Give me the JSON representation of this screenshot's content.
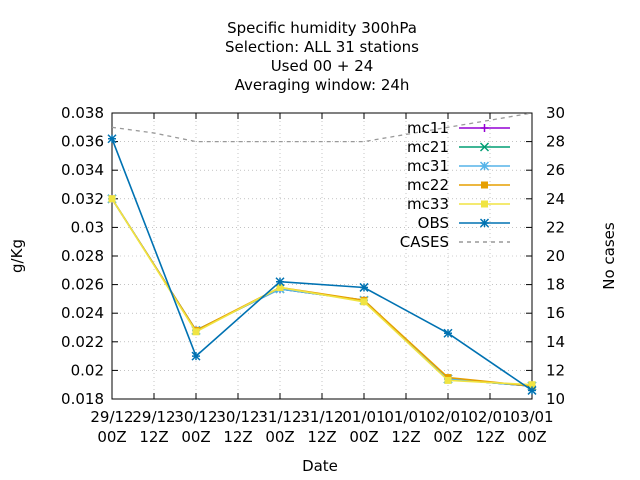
{
  "chart_data": {
    "type": "line",
    "title_lines": [
      "Specific humidity 300hPa",
      "Selection: ALL      31 stations",
      "Used  00 + 24",
      "Averaging window: 24h"
    ],
    "xlabel": "Date",
    "ylabel": "g/Kg",
    "y2label": "No cases",
    "x_ticks": [
      [
        "29/12",
        "00Z"
      ],
      [
        "29/12",
        "12Z"
      ],
      [
        "30/12",
        "00Z"
      ],
      [
        "30/12",
        "12Z"
      ],
      [
        "31/12",
        "00Z"
      ],
      [
        "31/12",
        "12Z"
      ],
      [
        "01/01",
        "00Z"
      ],
      [
        "01/01",
        "12Z"
      ],
      [
        "02/01",
        "00Z"
      ],
      [
        "02/01",
        "12Z"
      ],
      [
        "03/01",
        "00Z"
      ]
    ],
    "xlim": [
      0,
      10
    ],
    "ylim": [
      0.018,
      0.038
    ],
    "y_ticks": [
      "0.018",
      "0.02",
      "0.022",
      "0.024",
      "0.026",
      "0.028",
      "0.03",
      "0.032",
      "0.034",
      "0.036",
      "0.038"
    ],
    "y2lim": [
      10,
      30
    ],
    "y2_ticks": [
      "10",
      "12",
      "14",
      "16",
      "18",
      "20",
      "22",
      "24",
      "26",
      "28",
      "30"
    ],
    "grid": true,
    "legend_position": "top-right",
    "series": [
      {
        "name": "mc11",
        "color": "#9400d3",
        "marker": "plus",
        "dash": "",
        "axis": "y1",
        "x": [
          0,
          2,
          4,
          6,
          8,
          10
        ],
        "values": [
          0.032,
          0.0228,
          0.0257,
          0.0249,
          0.0194,
          0.0189
        ]
      },
      {
        "name": "mc21",
        "color": "#009e73",
        "marker": "cross",
        "dash": "",
        "axis": "y1",
        "x": [
          0,
          2,
          4,
          6,
          8,
          10
        ],
        "values": [
          0.032,
          0.0228,
          0.0257,
          0.0249,
          0.0194,
          0.0189
        ]
      },
      {
        "name": "mc31",
        "color": "#56b4e9",
        "marker": "star",
        "dash": "",
        "axis": "y1",
        "x": [
          0,
          2,
          4,
          6,
          8,
          10
        ],
        "values": [
          0.032,
          0.0228,
          0.0257,
          0.0249,
          0.0194,
          0.0189
        ]
      },
      {
        "name": "mc22",
        "color": "#e69f00",
        "marker": "box",
        "dash": "",
        "axis": "y1",
        "x": [
          0,
          2,
          4,
          6,
          8,
          10
        ],
        "values": [
          0.032,
          0.0228,
          0.0258,
          0.0249,
          0.0195,
          0.0189
        ]
      },
      {
        "name": "mc33",
        "color": "#f0e442",
        "marker": "fbox",
        "dash": "",
        "axis": "y1",
        "x": [
          0,
          2,
          4,
          6,
          8,
          10
        ],
        "values": [
          0.032,
          0.0227,
          0.0258,
          0.0248,
          0.0193,
          0.019
        ]
      },
      {
        "name": "OBS",
        "color": "#0072b2",
        "marker": "star",
        "dash": "",
        "axis": "y1",
        "x": [
          0,
          2,
          4,
          6,
          8,
          10
        ],
        "values": [
          0.0362,
          0.021,
          0.0262,
          0.0258,
          0.0226,
          0.0186
        ]
      },
      {
        "name": "CASES",
        "color": "#999999",
        "marker": "none",
        "dash": "4,4",
        "axis": "y2",
        "x": [
          0,
          1,
          2,
          3,
          4,
          5,
          6,
          7,
          8,
          9,
          10
        ],
        "values": [
          29,
          28.6,
          28,
          28,
          28,
          28,
          28,
          28.5,
          29,
          29.5,
          30
        ]
      }
    ]
  }
}
